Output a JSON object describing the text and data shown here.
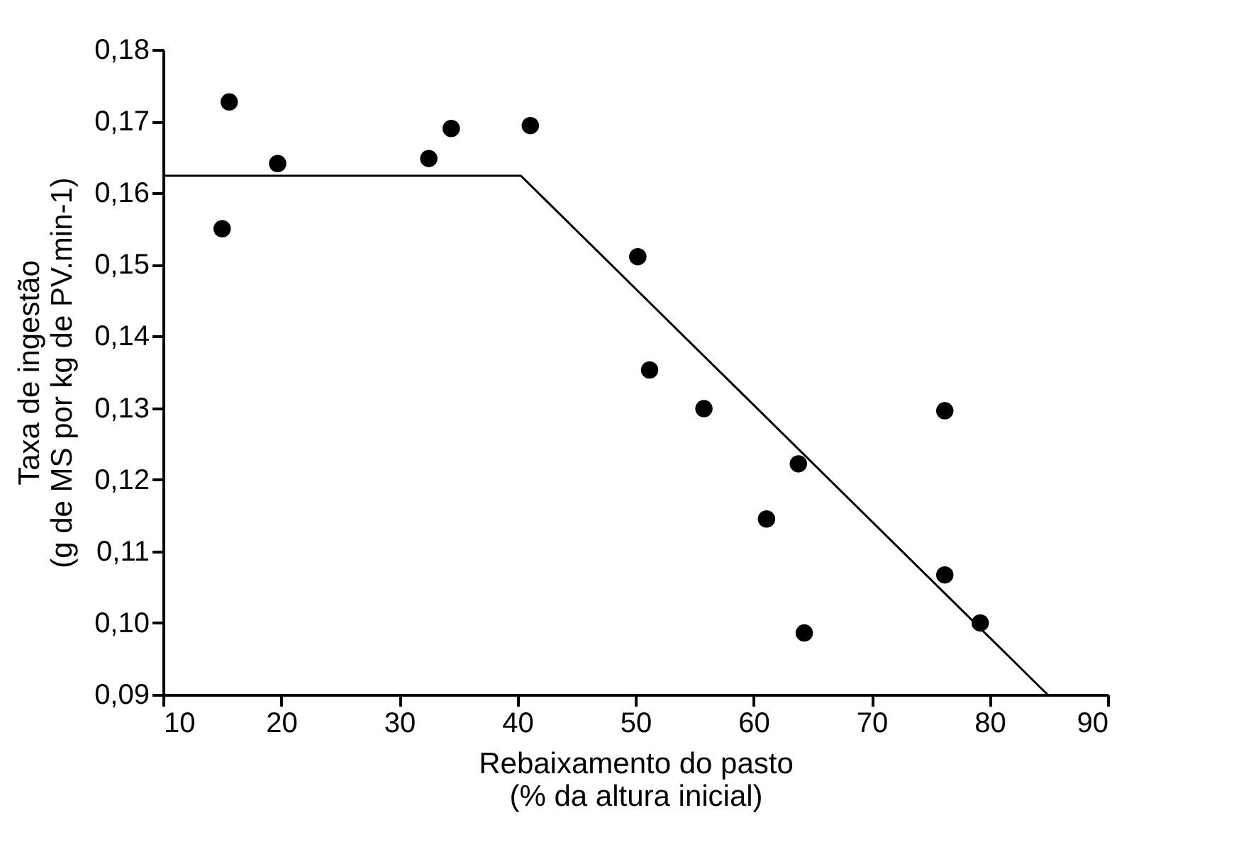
{
  "chart_data": {
    "type": "scatter",
    "xlabel": "Rebaixamento do pasto\n(% da altura inicial)",
    "ylabel": "Taxa de ingestão\n(g de MS por kg de PV.min-1)",
    "x": [
      15.6,
      15.0,
      19.7,
      32.5,
      34.4,
      41.1,
      50.2,
      51.2,
      55.8,
      63.8,
      61.1,
      64.3,
      76.2,
      76.2,
      79.2
    ],
    "series": [
      {
        "color": "#000000",
        "values": [
          0.1727,
          0.155,
          0.1641,
          0.1648,
          0.169,
          0.1694,
          0.1511,
          0.1353,
          0.1299,
          0.1222,
          0.1145,
          0.0986,
          0.1296,
          0.1067,
          0.1
        ],
        "marker": "circle"
      },
      {
        "type": "line",
        "color": "#000000",
        "x": [
          10,
          40.3,
          84.9
        ],
        "values": [
          0.1624,
          0.1624,
          0.09
        ],
        "marker": "none",
        "line_style": "solid"
      }
    ],
    "xlim": [
      10,
      90
    ],
    "xticks": [
      10,
      20,
      30,
      40,
      50,
      60,
      70,
      80,
      90
    ],
    "ylim": [
      0.09,
      0.18
    ],
    "yticks": [
      {
        "value": 0.09,
        "label": "0,09"
      },
      {
        "value": 0.1,
        "label": "0,10"
      },
      {
        "value": 0.11,
        "label": "0,11"
      },
      {
        "value": 0.12,
        "label": "0,12"
      },
      {
        "value": 0.13,
        "label": "0,13"
      },
      {
        "value": 0.14,
        "label": "0,14"
      },
      {
        "value": 0.15,
        "label": "0,15"
      },
      {
        "value": 0.16,
        "label": "0,16"
      },
      {
        "value": 0.17,
        "label": "0,17"
      },
      {
        "value": 0.18,
        "label": "0,18"
      }
    ],
    "grid": false
  }
}
